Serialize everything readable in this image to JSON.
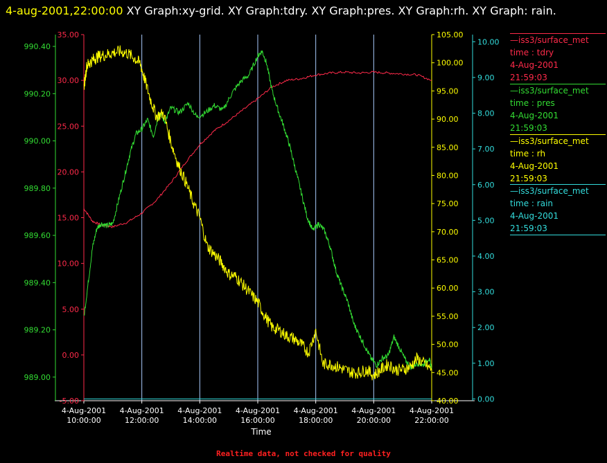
{
  "header": {
    "timestamp": "4-aug-2001,22:00:00",
    "graphs_text": " XY Graph:xy-grid.  XY Graph:tdry.  XY Graph:pres.  XY Graph:rh.  XY Graph: rain."
  },
  "footer": {
    "note": "Realtime data, not checked for quality"
  },
  "colors": {
    "tdry": "#ff2a4a",
    "pres": "#33dd33",
    "rh": "#ffff00",
    "rain": "#33dddd",
    "grid": "#aaccff",
    "background": "#000000"
  },
  "legend": [
    {
      "line1": "—iss3/surface_met",
      "line2": "time : tdry",
      "line3": "4-Aug-2001",
      "line4": "21:59:03"
    },
    {
      "line1": "—iss3/surface_met",
      "line2": "time : pres",
      "line3": "4-Aug-2001",
      "line4": "21:59:03"
    },
    {
      "line1": "—iss3/surface_met",
      "line2": "time : rh",
      "line3": "4-Aug-2001",
      "line4": "21:59:03"
    },
    {
      "line1": "—iss3/surface_met",
      "line2": "time : rain",
      "line3": "4-Aug-2001",
      "line4": "21:59:03"
    }
  ],
  "chart_data": {
    "type": "line",
    "xlabel": "Time",
    "xlim": [
      10,
      22
    ],
    "x_ticks": [
      {
        "date": "4-Aug-2001",
        "time": "10:00:00"
      },
      {
        "date": "4-Aug-2001",
        "time": "12:00:00"
      },
      {
        "date": "4-Aug-2001",
        "time": "14:00:00"
      },
      {
        "date": "4-Aug-2001",
        "time": "16:00:00"
      },
      {
        "date": "4-Aug-2001",
        "time": "18:00:00"
      },
      {
        "date": "4-Aug-2001",
        "time": "20:00:00"
      },
      {
        "date": "4-Aug-2001",
        "time": "22:00:00"
      }
    ],
    "grid": true,
    "axes": {
      "tdry": {
        "ylim": [
          -5,
          35
        ],
        "ticks": [
          "-5.00",
          "0.00",
          "5.00",
          "10.00",
          "15.00",
          "20.00",
          "25.00",
          "30.00",
          "35.00"
        ]
      },
      "pres": {
        "ylim": [
          988.9,
          990.45
        ],
        "ticks": [
          "989.00",
          "989.20",
          "989.40",
          "989.60",
          "989.80",
          "990.00",
          "990.20",
          "990.40"
        ]
      },
      "rh": {
        "ylim": [
          40,
          105
        ],
        "ticks": [
          "40.00",
          "45.00",
          "50.00",
          "55.00",
          "60.00",
          "65.00",
          "70.00",
          "75.00",
          "80.00",
          "85.00",
          "90.00",
          "95.00",
          "100.00",
          "105.00"
        ]
      },
      "rain": {
        "ylim": [
          -0.05,
          10.2
        ],
        "ticks": [
          "0.00",
          "1.00",
          "2.00",
          "3.00",
          "4.00",
          "5.00",
          "6.00",
          "7.00",
          "8.00",
          "9.00",
          "10.00"
        ]
      }
    },
    "series": [
      {
        "key": "tdry",
        "x": [
          10.0,
          10.3,
          10.6,
          11.0,
          11.5,
          12.0,
          12.5,
          13.0,
          13.5,
          14.0,
          14.5,
          15.0,
          15.5,
          16.0,
          16.5,
          17.0,
          17.5,
          18.0,
          18.5,
          19.0,
          19.5,
          20.0,
          20.5,
          21.0,
          21.5,
          22.0
        ],
        "y": [
          16.0,
          14.6,
          14.2,
          14.0,
          14.5,
          15.5,
          16.9,
          18.8,
          21.0,
          23.0,
          24.5,
          25.6,
          26.8,
          28.0,
          29.3,
          30.0,
          30.2,
          30.6,
          30.8,
          30.9,
          30.8,
          30.9,
          30.8,
          30.7,
          30.6,
          30.0
        ]
      },
      {
        "key": "pres",
        "x": [
          10.0,
          10.15,
          10.3,
          10.45,
          10.6,
          10.8,
          11.0,
          11.2,
          11.4,
          11.6,
          11.8,
          12.0,
          12.2,
          12.4,
          12.6,
          12.8,
          13.0,
          13.3,
          13.6,
          13.9,
          14.2,
          14.5,
          14.8,
          15.1,
          15.4,
          15.7,
          16.0,
          16.15,
          16.3,
          16.5,
          16.7,
          16.9,
          17.1,
          17.3,
          17.5,
          17.7,
          17.9,
          18.1,
          18.3,
          18.5,
          18.7,
          18.9,
          19.1,
          19.3,
          19.5,
          19.7,
          19.9,
          20.1,
          20.3,
          20.5,
          20.7,
          20.9,
          21.1,
          21.3,
          21.5,
          21.7,
          21.9,
          22.0
        ],
        "y": [
          989.25,
          989.4,
          989.55,
          989.63,
          989.65,
          989.64,
          989.65,
          989.75,
          989.85,
          989.95,
          990.03,
          990.05,
          990.09,
          990.02,
          990.12,
          990.08,
          990.14,
          990.12,
          990.16,
          990.1,
          990.12,
          990.15,
          990.13,
          990.2,
          990.25,
          990.28,
          990.36,
          990.38,
          990.33,
          990.21,
          990.13,
          990.06,
          989.98,
          989.88,
          989.78,
          989.68,
          989.62,
          989.65,
          989.62,
          989.55,
          989.45,
          989.38,
          989.32,
          989.23,
          989.18,
          989.13,
          989.08,
          989.05,
          989.08,
          989.09,
          989.17,
          989.12,
          989.07,
          989.04,
          989.06,
          989.05,
          989.08,
          989.04
        ]
      },
      {
        "key": "rh",
        "x": [
          10.0,
          10.1,
          10.2,
          10.35,
          10.5,
          10.75,
          11.0,
          11.25,
          11.5,
          11.75,
          11.95,
          12.1,
          12.3,
          12.5,
          12.75,
          13.0,
          13.25,
          13.5,
          13.75,
          14.0,
          14.25,
          14.5,
          14.75,
          15.0,
          15.25,
          15.5,
          15.75,
          16.0,
          16.25,
          16.5,
          16.75,
          17.0,
          17.25,
          17.5,
          17.75,
          18.0,
          18.25,
          18.5,
          18.75,
          19.0,
          19.25,
          19.5,
          19.75,
          20.0,
          20.25,
          20.5,
          20.75,
          21.0,
          21.25,
          21.5,
          21.75,
          22.0
        ],
        "y": [
          95.5,
          99.5,
          100.0,
          100.7,
          101.1,
          101.4,
          101.8,
          102.0,
          101.7,
          100.8,
          99.8,
          97.0,
          93.5,
          90.5,
          91.0,
          86.0,
          82.0,
          79.0,
          75.5,
          72.5,
          67.5,
          66.0,
          64.5,
          62.5,
          62.0,
          60.5,
          59.0,
          57.5,
          55.0,
          53.0,
          52.5,
          51.5,
          51.0,
          50.0,
          48.5,
          52.5,
          46.5,
          46.5,
          46.0,
          45.5,
          45.0,
          45.0,
          45.5,
          44.5,
          45.5,
          46.5,
          45.5,
          45.5,
          46.0,
          47.5,
          46.5,
          45.5
        ]
      },
      {
        "key": "rain",
        "x": [
          10.0,
          22.0
        ],
        "y": [
          0.0,
          0.0
        ]
      }
    ]
  }
}
